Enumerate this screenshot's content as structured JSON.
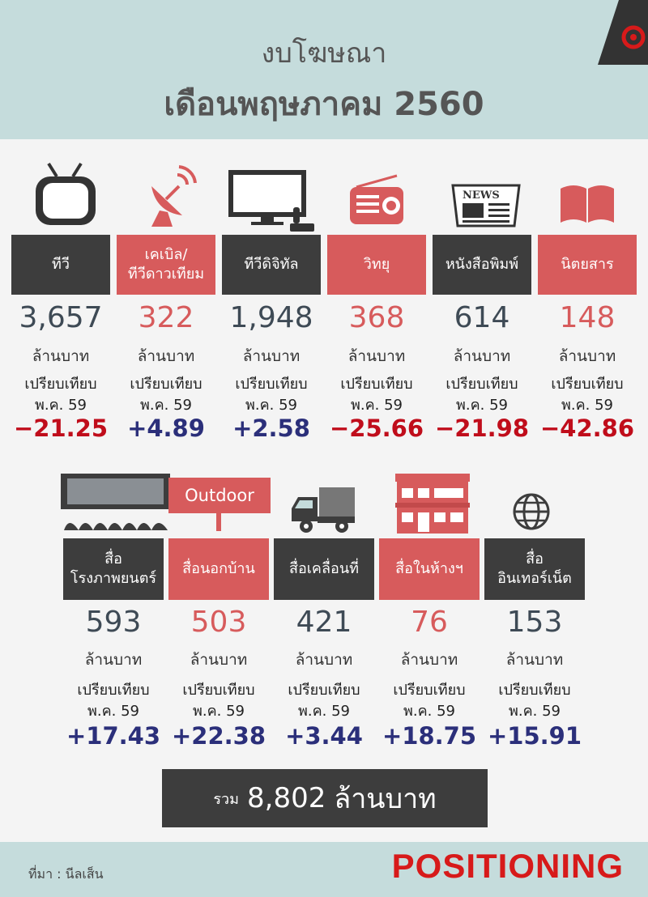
{
  "title": {
    "line1": "งบโฆษณา",
    "line2": "เดือนพฤษภาคม 2560"
  },
  "colors": {
    "header_bg": "#c5dcdc",
    "dark_box": "#3d3d3d",
    "red_box": "#d75b5c",
    "negative": "#c00d1b",
    "positive": "#2b2f7a"
  },
  "common": {
    "unit": "ล้านบาท",
    "compare_line1": "เปรียบเทียบ",
    "compare_line2": "พ.ค. 59"
  },
  "row1": [
    {
      "icon": "tv-icon",
      "label": "ทีวี",
      "value": "3,657",
      "change": "−21.25"
    },
    {
      "icon": "satellite-dish-icon",
      "label": "เคเบิล/\nทีวีดาวเทียม",
      "value": "322",
      "change": "+4.89"
    },
    {
      "icon": "digital-tv-icon",
      "label": "ทีวีดิจิทัล",
      "value": "1,948",
      "change": "+2.58"
    },
    {
      "icon": "radio-icon",
      "label": "วิทยุ",
      "value": "368",
      "change": "−25.66"
    },
    {
      "icon": "newspaper-icon",
      "label": "หนังสือพิมพ์",
      "value": "614",
      "change": "−21.98"
    },
    {
      "icon": "magazine-icon",
      "label": "นิตยสาร",
      "value": "148",
      "change": "−42.86"
    }
  ],
  "row2": [
    {
      "icon": "cinema-icon",
      "label": "สื่อ\nโรงภาพยนตร์",
      "value": "593",
      "change": "+17.43"
    },
    {
      "icon": "billboard-icon",
      "label": "สื่อนอกบ้าน",
      "value": "503",
      "change": "+22.38"
    },
    {
      "icon": "truck-icon",
      "label": "สื่อเคลื่อนที่",
      "value": "421",
      "change": "+3.44"
    },
    {
      "icon": "store-icon",
      "label": "สื่อในห้างฯ",
      "value": "76",
      "change": "+18.75"
    },
    {
      "icon": "globe-icon",
      "label": "สื่อ\nอินเทอร์เน็ต",
      "value": "153",
      "change": "+15.91"
    }
  ],
  "outdoor_sign": "Outdoor",
  "total": {
    "prefix": "รวม",
    "value": "8,802",
    "unit": "ล้านบาท"
  },
  "footer": {
    "source": "ที่มา : นีลเส็น",
    "brand": "POSITIONING"
  }
}
